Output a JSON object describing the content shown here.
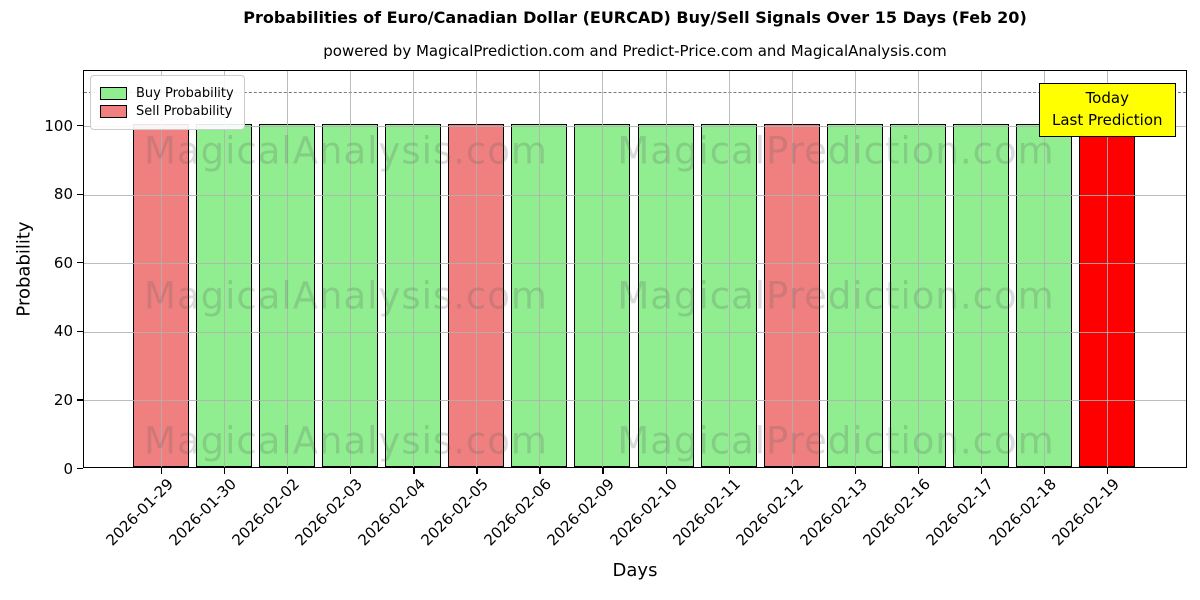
{
  "chart_data": {
    "type": "bar",
    "title": "Probabilities of Euro/Canadian Dollar (EURCAD) Buy/Sell Signals Over 15 Days (Feb 20)",
    "subtitle": "powered by MagicalPrediction.com and Predict-Price.com and MagicalAnalysis.com",
    "xlabel": "Days",
    "ylabel": "Probability",
    "ylim": [
      0,
      116
    ],
    "yticks": [
      0,
      20,
      40,
      60,
      80,
      100
    ],
    "grid": true,
    "grid_color": "#b0b0b0",
    "dashed_line_y": 110,
    "dashed_line_color": "#7a7a7a",
    "bar_edge_color": "#000000",
    "categories": [
      "2026-01-29",
      "2026-01-30",
      "2026-02-02",
      "2026-02-03",
      "2026-02-04",
      "2026-02-05",
      "2026-02-06",
      "2026-02-09",
      "2026-02-10",
      "2026-02-11",
      "2026-02-12",
      "2026-02-13",
      "2026-02-16",
      "2026-02-17",
      "2026-02-18",
      "2026-02-19"
    ],
    "series": [
      {
        "name": "Buy Probability",
        "color": "#90EE90",
        "values": [
          null,
          100,
          100,
          100,
          100,
          null,
          100,
          100,
          100,
          100,
          null,
          100,
          100,
          100,
          100,
          null
        ]
      },
      {
        "name": "Sell Probability",
        "color": "#F08080",
        "values": [
          100,
          null,
          null,
          null,
          null,
          100,
          null,
          null,
          null,
          null,
          100,
          null,
          null,
          null,
          null,
          null
        ]
      },
      {
        "name": "Today Last Prediction",
        "color": "#FF0000",
        "values": [
          null,
          null,
          null,
          null,
          null,
          null,
          null,
          null,
          null,
          null,
          null,
          null,
          null,
          null,
          null,
          100
        ]
      }
    ],
    "legend": {
      "position": "upper-left",
      "entries": [
        {
          "label": "Buy Probability",
          "color": "#90EE90"
        },
        {
          "label": "Sell Probability",
          "color": "#F08080"
        }
      ]
    },
    "annotation": {
      "lines": [
        "Today",
        "Last Prediction"
      ],
      "bg": "#FFFF00"
    },
    "watermarks": {
      "left_text": "MagicalAnalysis.com",
      "right_text": "MagicalPrediction.com",
      "color": "rgba(90,90,90,0.22)"
    }
  }
}
